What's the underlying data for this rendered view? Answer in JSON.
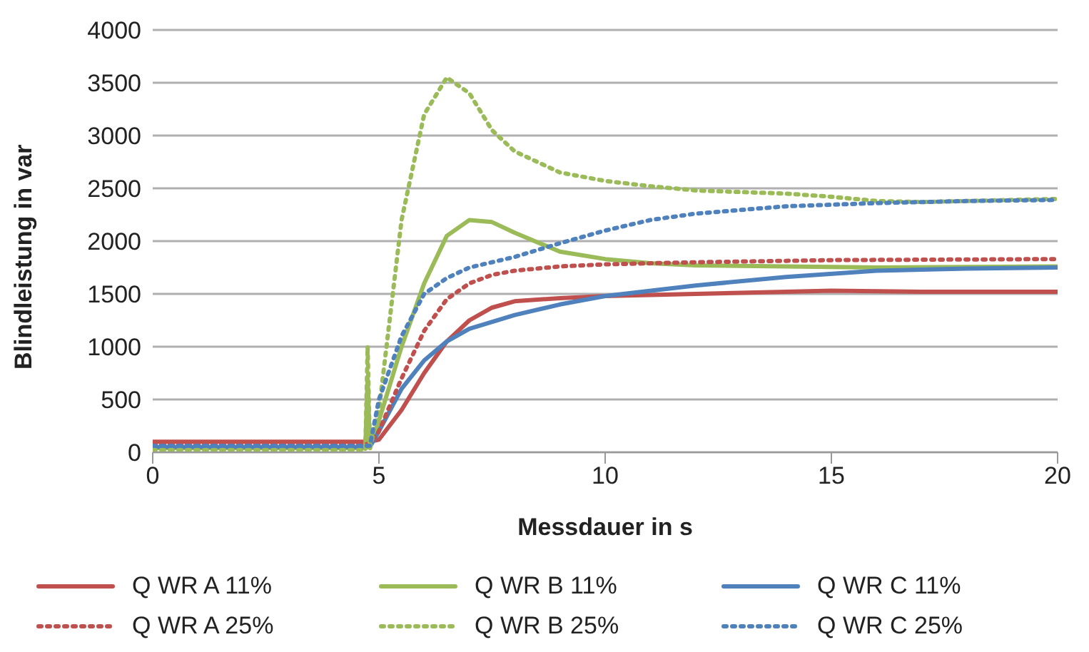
{
  "chart_data": {
    "type": "line",
    "xlabel": "Messdauer in s",
    "ylabel": "Blindleistung in var",
    "xlim": [
      0,
      20
    ],
    "xticks": [
      0,
      5,
      10,
      15,
      20
    ],
    "ylim": [
      0,
      4000
    ],
    "yticks": [
      0,
      500,
      1000,
      1500,
      2000,
      2500,
      3000,
      3500,
      4000
    ],
    "grid": "y",
    "legend": "bottom",
    "marker": "none",
    "series": [
      {
        "name": "Q WR A 11%",
        "color": "#c0504d",
        "line_style": "solid",
        "x": [
          0,
          2,
          4,
          4.8,
          5,
          5.5,
          6,
          6.5,
          7,
          7.5,
          8,
          9,
          10,
          12,
          14,
          15,
          17,
          20
        ],
        "values": [
          100,
          100,
          100,
          100,
          120,
          400,
          750,
          1050,
          1250,
          1370,
          1430,
          1460,
          1480,
          1500,
          1520,
          1530,
          1520,
          1520
        ]
      },
      {
        "name": "Q WR B 11%",
        "color": "#9bbb59",
        "line_style": "solid",
        "x": [
          0,
          2,
          4.7,
          4.75,
          4.8,
          5,
          5.5,
          6,
          6.5,
          7,
          7.5,
          8,
          9,
          10,
          11,
          12,
          14,
          16,
          20
        ],
        "values": [
          40,
          40,
          40,
          700,
          50,
          300,
          1000,
          1600,
          2050,
          2200,
          2180,
          2080,
          1900,
          1830,
          1790,
          1770,
          1760,
          1750,
          1760
        ]
      },
      {
        "name": "Q WR C 11%",
        "color": "#4f81bd",
        "line_style": "solid",
        "x": [
          0,
          2,
          4.8,
          5,
          5.5,
          6,
          6.5,
          7,
          8,
          9,
          10,
          12,
          14,
          16,
          18,
          20
        ],
        "values": [
          50,
          50,
          50,
          200,
          600,
          870,
          1050,
          1170,
          1300,
          1400,
          1480,
          1580,
          1660,
          1720,
          1740,
          1750
        ]
      },
      {
        "name": "Q WR A 25%",
        "color": "#c0504d",
        "line_style": "dotted",
        "x": [
          0,
          2,
          4.8,
          5,
          5.5,
          6,
          6.5,
          7,
          7.5,
          8,
          9,
          10,
          12,
          15,
          20
        ],
        "values": [
          80,
          80,
          80,
          200,
          700,
          1150,
          1450,
          1600,
          1680,
          1720,
          1760,
          1780,
          1800,
          1820,
          1830
        ]
      },
      {
        "name": "Q WR B 25%",
        "color": "#9bbb59",
        "line_style": "dotted",
        "x": [
          0,
          2,
          4.7,
          4.75,
          4.8,
          5,
          5.25,
          5.5,
          6,
          6.5,
          7,
          7.5,
          8,
          8.5,
          9,
          10,
          11,
          12,
          14,
          15,
          16,
          17,
          18,
          20
        ],
        "values": [
          20,
          20,
          20,
          1000,
          30,
          400,
          1300,
          2200,
          3200,
          3550,
          3400,
          3050,
          2850,
          2750,
          2650,
          2570,
          2520,
          2480,
          2450,
          2420,
          2380,
          2370,
          2380,
          2400
        ]
      },
      {
        "name": "Q WR C 25%",
        "color": "#4f81bd",
        "line_style": "dotted",
        "x": [
          0,
          2,
          4.8,
          5,
          5.5,
          6,
          6.5,
          7,
          8,
          9,
          10,
          11,
          12,
          14,
          16,
          18,
          20
        ],
        "values": [
          60,
          60,
          60,
          500,
          1100,
          1500,
          1650,
          1750,
          1850,
          1980,
          2100,
          2200,
          2260,
          2330,
          2360,
          2380,
          2390
        ]
      }
    ]
  }
}
